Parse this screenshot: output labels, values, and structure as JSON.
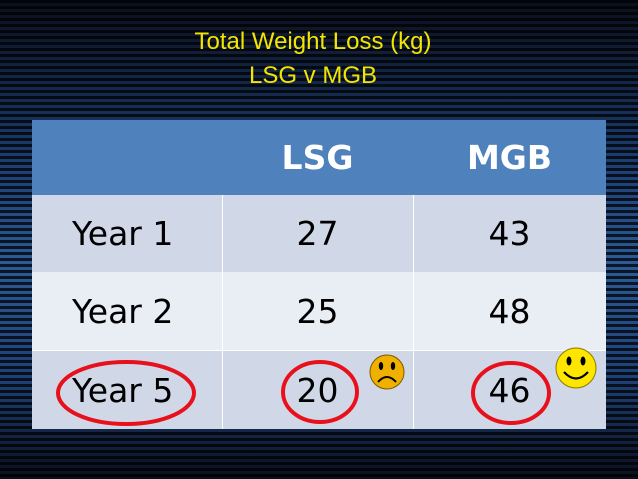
{
  "title": {
    "line1": "Total Weight Loss (kg)",
    "line2": "LSG v MGB"
  },
  "table": {
    "header": [
      "LSG",
      "MGB"
    ],
    "rows": [
      [
        "Year 1",
        27,
        43
      ],
      [
        "Year 2",
        25,
        48
      ],
      [
        "Year 5",
        20,
        46
      ]
    ]
  }
}
